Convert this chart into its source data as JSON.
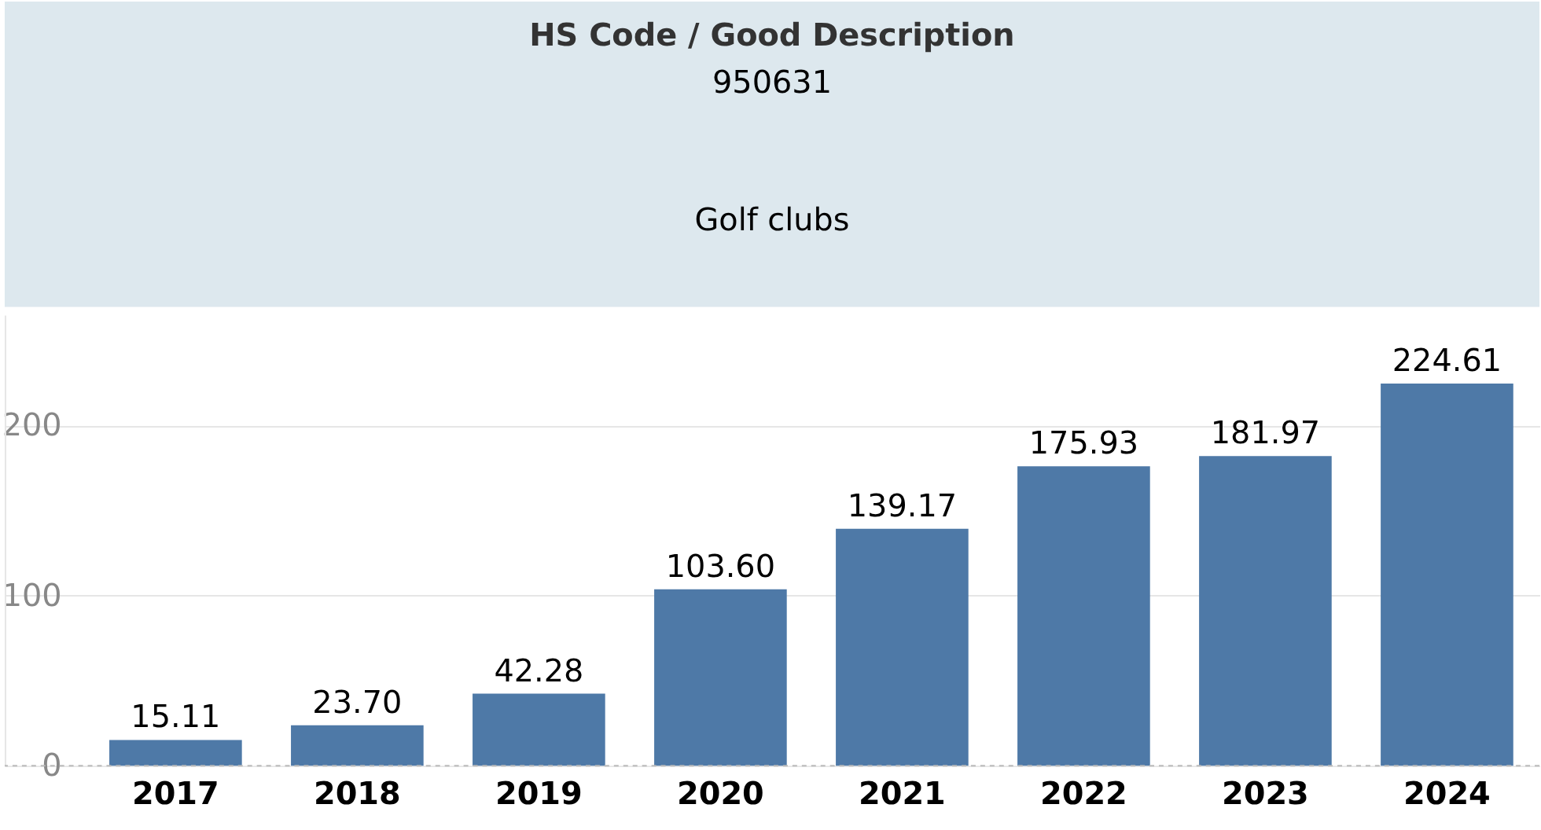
{
  "chart_data": {
    "type": "bar",
    "title": "HS Code / Good Description",
    "subtitle": "950631",
    "annotations": [
      "Golf clubs"
    ],
    "categories": [
      "2017",
      "2018",
      "2019",
      "2020",
      "2021",
      "2022",
      "2023",
      "2024"
    ],
    "values": [
      15.11,
      23.7,
      42.28,
      103.6,
      139.17,
      175.93,
      181.97,
      224.61
    ],
    "value_labels": [
      "15.11",
      "23.70",
      "42.28",
      "103.60",
      "139.17",
      "175.93",
      "181.97",
      "224.61"
    ],
    "color": "#4e79a7",
    "ylim": [
      0,
      265
    ],
    "yticks": [
      0,
      100,
      200
    ],
    "grid": "y"
  }
}
